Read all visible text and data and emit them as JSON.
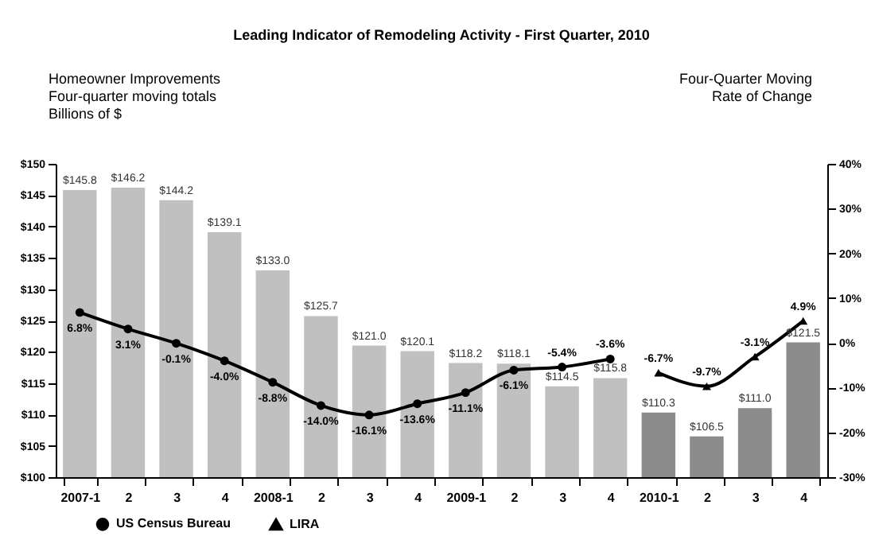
{
  "chart_data": {
    "type": "bar",
    "title": "Leading Indicator of Remodeling Activity - First Quarter, 2010",
    "ylabel": "Homeowner Improvements\nFour-quarter moving totals\nBillions of $",
    "y2label": "Four-Quarter Moving\nRate of Change",
    "categories": [
      "2007-1",
      "2",
      "3",
      "4",
      "2008-1",
      "2",
      "3",
      "4",
      "2009-1",
      "2",
      "3",
      "4",
      "2010-1",
      "2",
      "3",
      "4"
    ],
    "series": [
      {
        "type": "bar",
        "colors": [
          "#c0c0c0",
          "#c0c0c0",
          "#c0c0c0",
          "#c0c0c0",
          "#c0c0c0",
          "#c0c0c0",
          "#c0c0c0",
          "#c0c0c0",
          "#c0c0c0",
          "#c0c0c0",
          "#c0c0c0",
          "#c0c0c0",
          "#8c8c8c",
          "#8c8c8c",
          "#8c8c8c",
          "#8c8c8c"
        ],
        "values": [
          145.8,
          146.2,
          144.2,
          139.1,
          133.0,
          125.7,
          121.0,
          120.1,
          118.2,
          118.1,
          114.5,
          115.8,
          110.3,
          106.5,
          111.0,
          121.5
        ],
        "value_labels": [
          "$145.8",
          "$146.2",
          "$144.2",
          "$139.1",
          "$133.0",
          "$125.7",
          "$121.0",
          "$120.1",
          "$118.2",
          "$118.1",
          "$114.5",
          "$115.8",
          "$110.3",
          "$106.5",
          "$111.0",
          "$121.5"
        ]
      },
      {
        "type": "line",
        "name": "US Census Bureau",
        "axis": "y2",
        "color": "#000000",
        "marker": "circle",
        "values": [
          6.8,
          3.1,
          -0.1,
          -4.0,
          -8.8,
          -14.0,
          -16.1,
          -13.6,
          -11.1,
          -6.1,
          -5.4,
          -3.6,
          null,
          null,
          null,
          null
        ],
        "value_labels": [
          "6.8%",
          "3.1%",
          "-0.1%",
          "-4.0%",
          "-8.8%",
          "-14.0%",
          "-16.1%",
          "-13.6%",
          "-11.1%",
          "-6.1%",
          "-5.4%",
          "-3.6%",
          null,
          null,
          null,
          null
        ]
      },
      {
        "type": "line",
        "name": "LIRA",
        "axis": "y2",
        "color": "#000000",
        "marker": "triangle",
        "values": [
          null,
          null,
          null,
          null,
          null,
          null,
          null,
          null,
          null,
          null,
          null,
          null,
          -6.7,
          -9.7,
          -3.1,
          4.9
        ],
        "value_labels": [
          null,
          null,
          null,
          null,
          null,
          null,
          null,
          null,
          null,
          null,
          null,
          null,
          "-6.7%",
          "-9.7%",
          "-3.1%",
          "4.9%"
        ]
      }
    ],
    "ylim": [
      100,
      150
    ],
    "yticks": [
      {
        "value": 100,
        "label": "$100"
      },
      {
        "value": 105,
        "label": "$105"
      },
      {
        "value": 110,
        "label": "$110"
      },
      {
        "value": 115,
        "label": "$115"
      },
      {
        "value": 120,
        "label": "$120"
      },
      {
        "value": 125,
        "label": "$125"
      },
      {
        "value": 130,
        "label": "$130"
      },
      {
        "value": 135,
        "label": "$135"
      },
      {
        "value": 140,
        "label": "$140"
      },
      {
        "value": 145,
        "label": "$145"
      },
      {
        "value": 150,
        "label": "$150"
      }
    ],
    "y2lim": [
      -30,
      40
    ],
    "y2ticks": [
      {
        "value": -30,
        "label": "-30%"
      },
      {
        "value": -20,
        "label": "-20%"
      },
      {
        "value": -10,
        "label": "-10%"
      },
      {
        "value": 0,
        "label": "0%"
      },
      {
        "value": 10,
        "label": "10%"
      },
      {
        "value": 20,
        "label": "20%"
      },
      {
        "value": 30,
        "label": "30%"
      },
      {
        "value": 40,
        "label": "40%"
      }
    ],
    "legend": "bottom",
    "grid": false
  }
}
